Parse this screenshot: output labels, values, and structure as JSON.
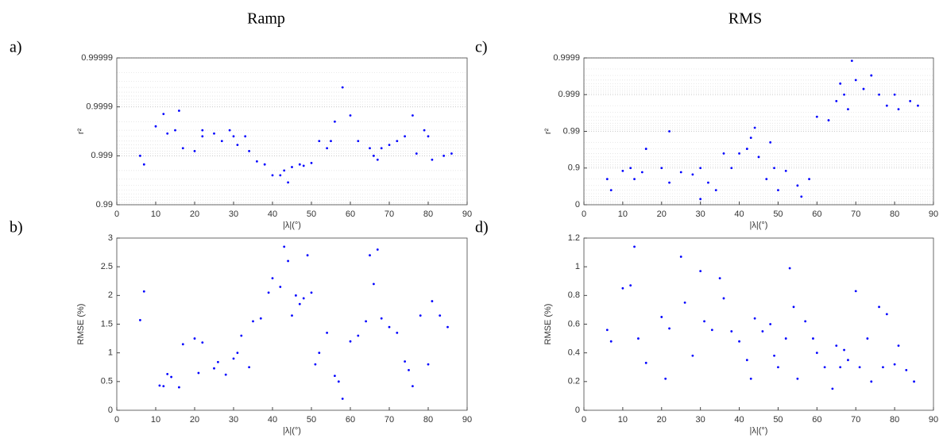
{
  "chart_data": [
    {
      "type": "scatter",
      "title": "Ramp",
      "panel_label": "a)",
      "xlabel": "|λ|(°)",
      "ylabel": "r²",
      "color": "#0000ff",
      "xlim": [
        0,
        90
      ],
      "xticks": [
        0,
        10,
        20,
        30,
        40,
        50,
        60,
        70,
        80,
        90
      ],
      "ylim": [
        0.99,
        0.99999
      ],
      "yticks": [
        0.99,
        0.999,
        0.9999,
        0.99999
      ],
      "yscale": "one-minus-log",
      "grid": true,
      "x": [
        6,
        7,
        10,
        12,
        13,
        15,
        16,
        17,
        20,
        22,
        22,
        25,
        27,
        29,
        30,
        31,
        33,
        34,
        36,
        38,
        40,
        42,
        43,
        44,
        45,
        47,
        48,
        50,
        52,
        54,
        55,
        56,
        58,
        60,
        62,
        65,
        66,
        67,
        68,
        70,
        72,
        74,
        76,
        77,
        79,
        80,
        81,
        84,
        86
      ],
      "values": [
        0.999,
        0.9985,
        0.99975,
        0.99986,
        0.99965,
        0.9997,
        0.99988,
        0.9993,
        0.9992,
        0.9997,
        0.9996,
        0.99965,
        0.9995,
        0.9997,
        0.9996,
        0.9994,
        0.9996,
        0.9992,
        0.9987,
        0.9985,
        0.9975,
        0.9975,
        0.998,
        0.9965,
        0.9983,
        0.9985,
        0.9984,
        0.9986,
        0.9995,
        0.9993,
        0.9995,
        0.9998,
        0.99996,
        0.99985,
        0.9995,
        0.9993,
        0.999,
        0.9988,
        0.9993,
        0.9994,
        0.9995,
        0.9996,
        0.99985,
        0.9991,
        0.9997,
        0.9996,
        0.9988,
        0.999,
        0.9991
      ]
    },
    {
      "type": "scatter",
      "panel_label": "b)",
      "xlabel": "|λ|(°)",
      "ylabel": "RMSE (%)",
      "color": "#0000ff",
      "xlim": [
        0,
        90
      ],
      "xticks": [
        0,
        10,
        20,
        30,
        40,
        50,
        60,
        70,
        80,
        90
      ],
      "ylim": [
        0,
        3
      ],
      "yticks": [
        0,
        0.5,
        1,
        1.5,
        2,
        2.5,
        3
      ],
      "grid": false,
      "x": [
        6,
        7,
        11,
        12,
        13,
        14,
        16,
        17,
        20,
        21,
        22,
        25,
        26,
        28,
        30,
        31,
        32,
        34,
        35,
        37,
        39,
        40,
        42,
        43,
        44,
        45,
        46,
        47,
        48,
        49,
        50,
        51,
        52,
        54,
        56,
        57,
        58,
        60,
        62,
        64,
        65,
        66,
        67,
        68,
        70,
        72,
        74,
        75,
        76,
        78,
        80,
        81,
        83,
        85
      ],
      "values": [
        1.57,
        2.07,
        0.43,
        0.42,
        0.63,
        0.58,
        0.4,
        1.15,
        1.25,
        0.65,
        1.18,
        0.73,
        0.84,
        0.62,
        0.9,
        1.0,
        1.3,
        0.75,
        1.55,
        1.6,
        2.05,
        2.3,
        2.15,
        2.85,
        2.6,
        1.65,
        2.0,
        1.85,
        1.95,
        2.7,
        2.05,
        0.8,
        1.0,
        1.35,
        0.6,
        0.5,
        0.2,
        1.2,
        1.3,
        1.55,
        2.7,
        2.2,
        2.8,
        1.6,
        1.45,
        1.35,
        0.85,
        0.7,
        0.42,
        1.65,
        0.8,
        1.9,
        1.65,
        1.45
      ]
    },
    {
      "type": "scatter",
      "title": "RMS",
      "panel_label": "c)",
      "xlabel": "|λ|(°)",
      "ylabel": "r²",
      "color": "#0000ff",
      "xlim": [
        0,
        90
      ],
      "xticks": [
        0,
        10,
        20,
        30,
        40,
        50,
        60,
        70,
        80,
        90
      ],
      "ylim": [
        0,
        0.9999
      ],
      "yticks": [
        0,
        0.9,
        0.99,
        0.999,
        0.9999
      ],
      "yscale": "one-minus-log",
      "grid": true,
      "x": [
        6,
        7,
        10,
        12,
        13,
        15,
        16,
        20,
        22,
        22,
        25,
        28,
        30,
        30,
        32,
        34,
        36,
        38,
        40,
        42,
        43,
        44,
        45,
        47,
        48,
        49,
        50,
        52,
        55,
        56,
        58,
        60,
        63,
        65,
        66,
        67,
        68,
        69,
        70,
        72,
        74,
        76,
        78,
        80,
        81,
        84,
        86
      ],
      "values": [
        0.8,
        0.6,
        0.88,
        0.9,
        0.8,
        0.87,
        0.97,
        0.9,
        0.99,
        0.75,
        0.87,
        0.85,
        0.3,
        0.9,
        0.75,
        0.6,
        0.96,
        0.9,
        0.96,
        0.97,
        0.985,
        0.992,
        0.95,
        0.8,
        0.98,
        0.9,
        0.6,
        0.88,
        0.7,
        0.4,
        0.8,
        0.996,
        0.995,
        0.9985,
        0.9995,
        0.999,
        0.9975,
        0.99988,
        0.9996,
        0.9993,
        0.9997,
        0.999,
        0.998,
        0.999,
        0.9975,
        0.9985,
        0.998
      ]
    },
    {
      "type": "scatter",
      "panel_label": "d)",
      "xlabel": "|λ|(°)",
      "ylabel": "RMSE (%)",
      "color": "#0000ff",
      "xlim": [
        0,
        90
      ],
      "xticks": [
        0,
        10,
        20,
        30,
        40,
        50,
        60,
        70,
        80,
        90
      ],
      "ylim": [
        0,
        1.2
      ],
      "yticks": [
        0,
        0.2,
        0.4,
        0.6,
        0.8,
        1,
        1.2
      ],
      "grid": false,
      "x": [
        6,
        7,
        10,
        12,
        13,
        14,
        16,
        20,
        21,
        22,
        25,
        26,
        28,
        30,
        31,
        33,
        35,
        36,
        38,
        40,
        42,
        43,
        44,
        46,
        48,
        49,
        50,
        52,
        53,
        54,
        55,
        57,
        59,
        60,
        62,
        64,
        65,
        66,
        67,
        68,
        70,
        71,
        73,
        74,
        76,
        77,
        78,
        80,
        81,
        83,
        85
      ],
      "values": [
        0.56,
        0.48,
        0.85,
        0.87,
        1.14,
        0.5,
        0.33,
        0.65,
        0.22,
        0.57,
        1.07,
        0.75,
        0.38,
        0.97,
        0.62,
        0.56,
        0.92,
        0.78,
        0.55,
        0.48,
        0.35,
        0.22,
        0.64,
        0.55,
        0.6,
        0.38,
        0.3,
        0.5,
        0.99,
        0.72,
        0.22,
        0.62,
        0.5,
        0.4,
        0.3,
        0.15,
        0.45,
        0.3,
        0.42,
        0.35,
        0.83,
        0.3,
        0.5,
        0.2,
        0.72,
        0.3,
        0.67,
        0.32,
        0.45,
        0.28,
        0.2
      ]
    }
  ]
}
